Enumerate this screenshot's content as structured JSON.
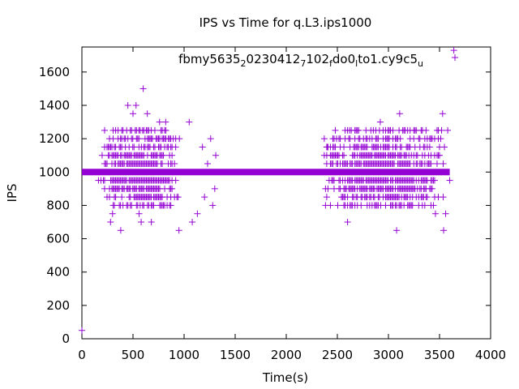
{
  "chart_data": {
    "type": "scatter",
    "title": "IPS vs Time for q.L3.ips1000",
    "xlabel": "Time(s)",
    "ylabel": "IPS",
    "xlim": [
      0,
      4000
    ],
    "ylim": [
      0,
      1750
    ],
    "xticks": [
      "0",
      "500",
      "1000",
      "1500",
      "2000",
      "2500",
      "3000",
      "3500",
      "4000"
    ],
    "yticks": [
      "0",
      "200",
      "400",
      "600",
      "800",
      "1000",
      "1200",
      "1400",
      "1600"
    ],
    "grid": false,
    "legend_position": "top-right",
    "series": [
      {
        "legend_parts": [
          "fbmy5635",
          "2",
          "0230412",
          "7",
          "102",
          "f",
          "do0",
          "l",
          "to1.cy9c5",
          "u"
        ],
        "color": "#9400d3",
        "marker": "plus",
        "baseline": {
          "y": 1000,
          "x_start": 0,
          "x_end": 3600
        },
        "points": [
          [
            0,
            50
          ],
          [
            280,
            700
          ],
          [
            300,
            750
          ],
          [
            380,
            650
          ],
          [
            450,
            1400
          ],
          [
            500,
            1350
          ],
          [
            530,
            1400
          ],
          [
            600,
            1500
          ],
          [
            640,
            1350
          ],
          [
            560,
            750
          ],
          [
            580,
            700
          ],
          [
            680,
            700
          ],
          [
            760,
            1300
          ],
          [
            820,
            1300
          ],
          [
            950,
            650
          ],
          [
            1050,
            1300
          ],
          [
            1080,
            700
          ],
          [
            1130,
            750
          ],
          [
            1180,
            1150
          ],
          [
            1200,
            850
          ],
          [
            1230,
            1050
          ],
          [
            1260,
            1200
          ],
          [
            1280,
            800
          ],
          [
            1300,
            900
          ],
          [
            1310,
            1100
          ],
          [
            2400,
            1150
          ],
          [
            2600,
            700
          ],
          [
            2620,
            1250
          ],
          [
            2720,
            1200
          ],
          [
            2920,
            1300
          ],
          [
            3080,
            650
          ],
          [
            3110,
            1350
          ],
          [
            3460,
            750
          ],
          [
            3520,
            1250
          ],
          [
            3530,
            1350
          ],
          [
            3540,
            650
          ],
          [
            3560,
            750
          ],
          [
            3580,
            1250
          ],
          [
            3600,
            950
          ],
          [
            3640,
            1730
          ]
        ]
      }
    ]
  }
}
